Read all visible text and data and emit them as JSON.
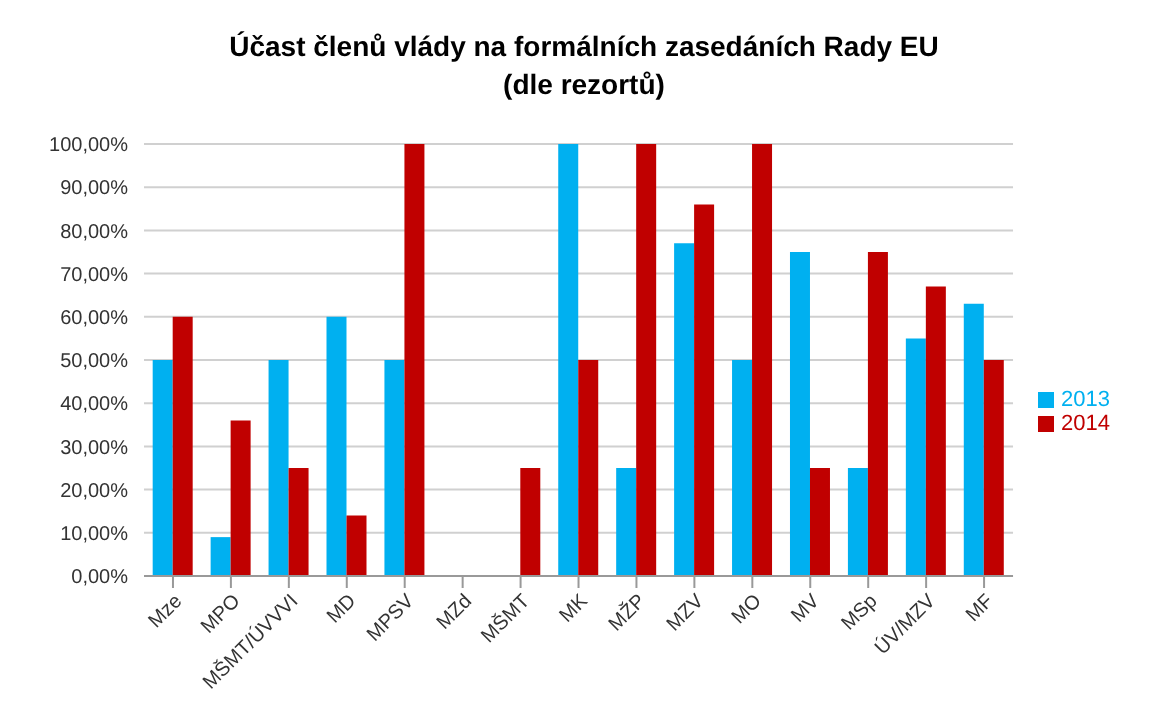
{
  "chart_data": {
    "type": "bar",
    "title": "Účast členů vlády na formálních zasedáních Rady EU",
    "subtitle": "(dle rezortů)",
    "categories": [
      "Mze",
      "MPO",
      "MŠMT/ÚVVVI",
      "MD",
      "MPSV",
      "MZd",
      "MŠMT",
      "MK",
      "MŽP",
      "MZV",
      "MO",
      "MV",
      "MSp",
      "ÚV/MZV",
      "MF"
    ],
    "series": [
      {
        "name": "2013",
        "color": "#00b0f0",
        "values": [
          50,
          9,
          50,
          60,
          50,
          0,
          0,
          100,
          25,
          77,
          50,
          75,
          25,
          55,
          63
        ]
      },
      {
        "name": "2014",
        "color": "#c00000",
        "values": [
          60,
          36,
          25,
          14,
          100,
          0,
          25,
          50,
          100,
          86,
          100,
          25,
          75,
          67,
          50
        ]
      }
    ],
    "ylim": [
      0,
      100
    ],
    "yticks": [
      {
        "value": 0,
        "label": "0,00%"
      },
      {
        "value": 10,
        "label": "10,00%"
      },
      {
        "value": 20,
        "label": "20,00%"
      },
      {
        "value": 30,
        "label": "30,00%"
      },
      {
        "value": 40,
        "label": "40,00%"
      },
      {
        "value": 50,
        "label": "50,00%"
      },
      {
        "value": 60,
        "label": "60,00%"
      },
      {
        "value": 70,
        "label": "70,00%"
      },
      {
        "value": 80,
        "label": "80,00%"
      },
      {
        "value": 90,
        "label": "90,00%"
      },
      {
        "value": 100,
        "label": "100,00%"
      }
    ],
    "grid": "y",
    "legend": "right"
  }
}
